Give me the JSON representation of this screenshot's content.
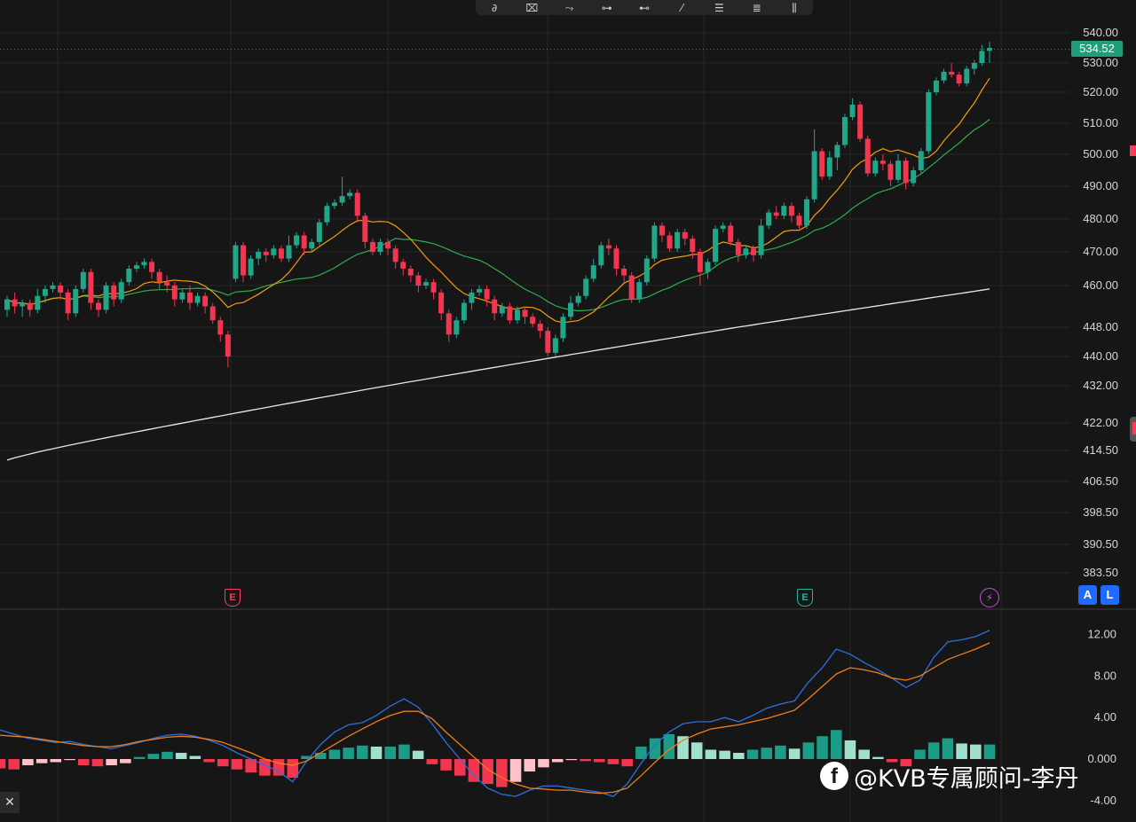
{
  "toolbar": {
    "tools": [
      {
        "name": "brush-icon",
        "glyph": "∂"
      },
      {
        "name": "rectangle-tool-icon",
        "glyph": "⌧"
      },
      {
        "name": "path-tool-icon",
        "glyph": "⤳"
      },
      {
        "name": "horizontal-line-icon",
        "glyph": "⊶"
      },
      {
        "name": "ray-tool-icon",
        "glyph": "⊷"
      },
      {
        "name": "trend-line-icon",
        "glyph": "⁄"
      },
      {
        "name": "parallel-channel-icon",
        "glyph": "☰"
      },
      {
        "name": "fib-retracement-icon",
        "glyph": "≣"
      },
      {
        "name": "measure-tool-icon",
        "glyph": "⫼"
      }
    ]
  },
  "last_price": "534.52",
  "earnings_markers": [
    "E",
    "E"
  ],
  "lightning_icon": "⚡",
  "buttons": {
    "auto": "A",
    "log": "L"
  },
  "close_icon": "✕",
  "watermark": {
    "logo": "f",
    "text": "@KVB专属顾问-李丹"
  },
  "colors": {
    "up": "#22a68a",
    "down": "#f2364f",
    "ma_short": "#f39c12",
    "ma_mid": "#2eae4f",
    "ma_long": "#e8e8e8",
    "macd": "#2f6fe0",
    "signal": "#f07d1a",
    "hist_up_strong": "#1a9c86",
    "hist_up_weak": "#9fe0cf",
    "hist_down_strong": "#f2364f",
    "hist_down_weak": "#ffc1c8",
    "price_tag": "#1f9e7a",
    "grid": "#262626"
  },
  "chart_data": [
    {
      "type": "candlestick",
      "price_axis_ticks": [
        "540.00",
        "530.00",
        "520.00",
        "510.00",
        "500.00",
        "490.00",
        "480.00",
        "470.00",
        "460.00",
        "448.00",
        "440.00",
        "432.00",
        "422.00",
        "414.50",
        "406.50",
        "398.50",
        "390.50",
        "383.50"
      ],
      "last_price": 534.52,
      "candles": [
        [
          453,
          456,
          457,
          451
        ],
        [
          456,
          454,
          458,
          452
        ],
        [
          454,
          455,
          456,
          451
        ],
        [
          455,
          453,
          456,
          451
        ],
        [
          453,
          457,
          459,
          452
        ],
        [
          457,
          459,
          460,
          455
        ],
        [
          459,
          460,
          461,
          458
        ],
        [
          460,
          458,
          461,
          456
        ],
        [
          458,
          452,
          459,
          450
        ],
        [
          452,
          459,
          460,
          451
        ],
        [
          459,
          464,
          465,
          458
        ],
        [
          464,
          455,
          465,
          453
        ],
        [
          455,
          453,
          456,
          451
        ],
        [
          453,
          460,
          461,
          452
        ],
        [
          460,
          456,
          461,
          454
        ],
        [
          456,
          461,
          462,
          455
        ],
        [
          461,
          465,
          466,
          460
        ],
        [
          465,
          466,
          467,
          464
        ],
        [
          466,
          467,
          468,
          465
        ],
        [
          467,
          464,
          468,
          462
        ],
        [
          464,
          461,
          465,
          459
        ],
        [
          461,
          460,
          463,
          458
        ],
        [
          460,
          456,
          461,
          454
        ],
        [
          456,
          458,
          459,
          455
        ],
        [
          458,
          455,
          460,
          453
        ],
        [
          455,
          457,
          458,
          454
        ],
        [
          457,
          454,
          458,
          452
        ],
        [
          454,
          450,
          455,
          449
        ],
        [
          450,
          446,
          451,
          444
        ],
        [
          446,
          440,
          447,
          437
        ],
        [
          462,
          472,
          473,
          461
        ],
        [
          472,
          463,
          473,
          461
        ],
        [
          463,
          468,
          469,
          462
        ],
        [
          468,
          470,
          471,
          466
        ],
        [
          470,
          469,
          471,
          467
        ],
        [
          469,
          471,
          472,
          468
        ],
        [
          471,
          468,
          472,
          467
        ],
        [
          468,
          472,
          475,
          467
        ],
        [
          472,
          475,
          476,
          471
        ],
        [
          475,
          471,
          476,
          469
        ],
        [
          471,
          473,
          474,
          470
        ],
        [
          473,
          479,
          480,
          472
        ],
        [
          479,
          484,
          485,
          478
        ],
        [
          484,
          485,
          486,
          483
        ],
        [
          485,
          487,
          493,
          484
        ],
        [
          487,
          488,
          489,
          486
        ],
        [
          488,
          481,
          489,
          479
        ],
        [
          481,
          473,
          482,
          471
        ],
        [
          473,
          470,
          474,
          469
        ],
        [
          470,
          473,
          474,
          469
        ],
        [
          473,
          471,
          474,
          469
        ],
        [
          471,
          467,
          472,
          465
        ],
        [
          467,
          465,
          468,
          463
        ],
        [
          465,
          463,
          466,
          461
        ],
        [
          463,
          460,
          464,
          458
        ],
        [
          460,
          461,
          462,
          459
        ],
        [
          461,
          458,
          462,
          456
        ],
        [
          458,
          452,
          459,
          450
        ],
        [
          452,
          446,
          453,
          444
        ],
        [
          446,
          450,
          451,
          445
        ],
        [
          450,
          455,
          456,
          449
        ],
        [
          455,
          458,
          459,
          453
        ],
        [
          458,
          459,
          460,
          457
        ],
        [
          459,
          456,
          460,
          454
        ],
        [
          456,
          452,
          457,
          450
        ],
        [
          452,
          454,
          455,
          451
        ],
        [
          454,
          450,
          455,
          449
        ],
        [
          450,
          453,
          454,
          449
        ],
        [
          453,
          451,
          454,
          449
        ],
        [
          451,
          449,
          452,
          448
        ],
        [
          449,
          447,
          450,
          445
        ],
        [
          447,
          441,
          448,
          440
        ],
        [
          441,
          445,
          446,
          440
        ],
        [
          445,
          451,
          452,
          444
        ],
        [
          451,
          455,
          457,
          450
        ],
        [
          455,
          457,
          458,
          454
        ],
        [
          457,
          462,
          463,
          456
        ],
        [
          462,
          466,
          468,
          461
        ],
        [
          466,
          472,
          473,
          465
        ],
        [
          472,
          471,
          474,
          469
        ],
        [
          471,
          465,
          472,
          463
        ],
        [
          465,
          463,
          466,
          461
        ],
        [
          463,
          456,
          464,
          455
        ],
        [
          456,
          461,
          462,
          455
        ],
        [
          461,
          468,
          469,
          460
        ],
        [
          468,
          478,
          479,
          467
        ],
        [
          478,
          475,
          479,
          473
        ],
        [
          475,
          471,
          476,
          470
        ],
        [
          471,
          476,
          477,
          470
        ],
        [
          476,
          474,
          477,
          472
        ],
        [
          474,
          470,
          475,
          468
        ],
        [
          470,
          464,
          471,
          460
        ],
        [
          464,
          467,
          468,
          462
        ],
        [
          467,
          477,
          478,
          466
        ],
        [
          477,
          478,
          479,
          476
        ],
        [
          478,
          473,
          479,
          472
        ],
        [
          473,
          469,
          474,
          467
        ],
        [
          469,
          471,
          472,
          468
        ],
        [
          471,
          469,
          472,
          467
        ],
        [
          469,
          478,
          480,
          468
        ],
        [
          478,
          482,
          483,
          477
        ],
        [
          482,
          481,
          484,
          480
        ],
        [
          481,
          484,
          485,
          480
        ],
        [
          484,
          481,
          485,
          479
        ],
        [
          481,
          478,
          482,
          477
        ],
        [
          478,
          486,
          487,
          477
        ],
        [
          486,
          501,
          508,
          485
        ],
        [
          501,
          493,
          502,
          492
        ],
        [
          493,
          499,
          501,
          492
        ],
        [
          499,
          503,
          504,
          495
        ],
        [
          503,
          512,
          513,
          502
        ],
        [
          512,
          516,
          518,
          511
        ],
        [
          516,
          505,
          517,
          504
        ],
        [
          505,
          494,
          506,
          493
        ],
        [
          494,
          498,
          499,
          493
        ],
        [
          498,
          497,
          500,
          495
        ],
        [
          497,
          492,
          498,
          490
        ],
        [
          492,
          498,
          500,
          491
        ],
        [
          498,
          491,
          499,
          489
        ],
        [
          491,
          495,
          496,
          490
        ],
        [
          495,
          501,
          502,
          494
        ],
        [
          501,
          520,
          521,
          500
        ],
        [
          520,
          524,
          525,
          519
        ],
        [
          524,
          527,
          528,
          523
        ],
        [
          527,
          526,
          530,
          525
        ],
        [
          526,
          523,
          527,
          522
        ],
        [
          523,
          528,
          529,
          522
        ],
        [
          528,
          530,
          531,
          526
        ],
        [
          530,
          534,
          536,
          529
        ],
        [
          534,
          535,
          537,
          530
        ]
      ]
    },
    {
      "type": "macd",
      "axis_ticks": [
        "12.00",
        "8.00",
        "4.00",
        "0.000",
        "-4.00"
      ],
      "macd_line": [
        2.8,
        2.4,
        2.0,
        1.8,
        1.6,
        1.7,
        1.4,
        1.2,
        1.0,
        1.3,
        1.6,
        2.0,
        2.3,
        2.4,
        2.2,
        1.8,
        1.3,
        0.6,
        0.0,
        -0.6,
        -1.2,
        -2.2,
        -0.2,
        1.4,
        2.6,
        3.3,
        3.5,
        4.2,
        5.1,
        5.8,
        5.0,
        3.4,
        1.6,
        0.0,
        -1.6,
        -2.8,
        -3.4,
        -3.6,
        -3.0,
        -2.6,
        -2.6,
        -2.8,
        -3.0,
        -3.2,
        -3.6,
        -2.4,
        -0.4,
        1.4,
        2.6,
        3.4,
        3.6,
        3.6,
        4.0,
        3.6,
        4.2,
        4.9,
        5.3,
        5.6,
        7.4,
        8.8,
        10.6,
        10.1,
        9.3,
        8.6,
        7.8,
        6.9,
        7.6,
        9.8,
        11.3,
        11.5,
        11.8,
        12.4
      ],
      "signal_line": [
        2.3,
        2.2,
        2.1,
        1.9,
        1.7,
        1.5,
        1.3,
        1.2,
        1.2,
        1.4,
        1.7,
        1.9,
        2.1,
        2.2,
        2.1,
        1.9,
        1.6,
        1.1,
        0.6,
        0.0,
        -0.4,
        -0.6,
        -0.2,
        0.6,
        1.4,
        2.2,
        2.9,
        3.6,
        4.2,
        4.6,
        4.6,
        3.9,
        2.6,
        1.4,
        0.2,
        -1.0,
        -1.8,
        -2.4,
        -2.8,
        -2.9,
        -3.0,
        -3.0,
        -3.2,
        -3.3,
        -3.2,
        -2.8,
        -1.6,
        -0.3,
        0.9,
        1.8,
        2.4,
        2.9,
        3.1,
        3.3,
        3.6,
        3.9,
        4.3,
        4.7,
        5.8,
        7.0,
        8.2,
        8.8,
        8.6,
        8.3,
        7.8,
        7.6,
        8.0,
        8.8,
        9.6,
        10.1,
        10.6,
        11.2
      ],
      "histogram": [
        -0.9,
        -1.0,
        -0.6,
        -0.4,
        -0.3,
        -0.1,
        -0.6,
        -0.7,
        -0.6,
        -0.4,
        0.2,
        0.5,
        0.7,
        0.6,
        0.3,
        -0.3,
        -0.7,
        -1.0,
        -1.3,
        -1.6,
        -1.6,
        -1.8,
        0.3,
        0.6,
        0.9,
        1.1,
        1.3,
        1.2,
        1.2,
        1.4,
        0.8,
        -0.5,
        -1.1,
        -1.6,
        -2.2,
        -2.4,
        -2.7,
        -2.2,
        -1.2,
        -0.8,
        -0.3,
        -0.1,
        -0.2,
        -0.3,
        -0.5,
        -0.7,
        1.2,
        2.0,
        2.4,
        2.2,
        1.6,
        0.9,
        0.8,
        0.6,
        0.9,
        1.1,
        1.3,
        1.0,
        1.6,
        2.2,
        2.8,
        1.8,
        0.9,
        0.2,
        -0.3,
        -0.7,
        0.9,
        1.6,
        2.0,
        1.5,
        1.4,
        1.4
      ]
    }
  ]
}
